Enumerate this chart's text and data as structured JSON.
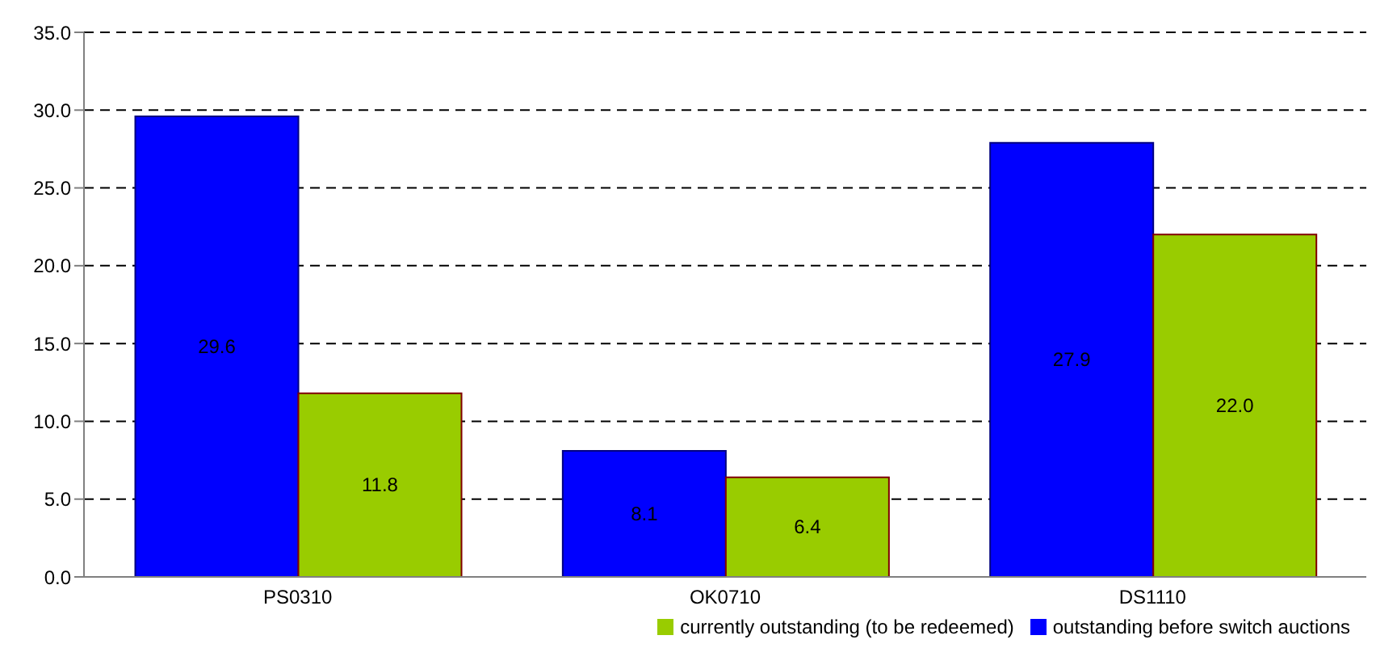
{
  "chart_data": {
    "type": "bar",
    "categories": [
      "PS0310",
      "OK0710",
      "DS1110"
    ],
    "series": [
      {
        "name": "outstanding before switch auctions",
        "color": "#0000ff",
        "values": [
          29.6,
          8.1,
          27.9
        ],
        "value_labels": [
          "29.6",
          "8.1",
          "27.9"
        ]
      },
      {
        "name": "currently outstanding (to be redeemed)",
        "color": "#99cc00",
        "values": [
          11.8,
          6.4,
          22.0
        ],
        "value_labels": [
          "11.8",
          "6.4",
          "22.0"
        ]
      }
    ],
    "ylim": [
      0,
      35
    ],
    "yticks": [
      {
        "value": 0,
        "label": "0.0"
      },
      {
        "value": 5,
        "label": "5.0"
      },
      {
        "value": 10,
        "label": "10.0"
      },
      {
        "value": 15,
        "label": "15.0"
      },
      {
        "value": 20,
        "label": "20.0"
      },
      {
        "value": 25,
        "label": "25.0"
      },
      {
        "value": 30,
        "label": "30.0"
      },
      {
        "value": 35,
        "label": "35.0"
      }
    ],
    "grid": "y",
    "legend": "bottom right"
  }
}
